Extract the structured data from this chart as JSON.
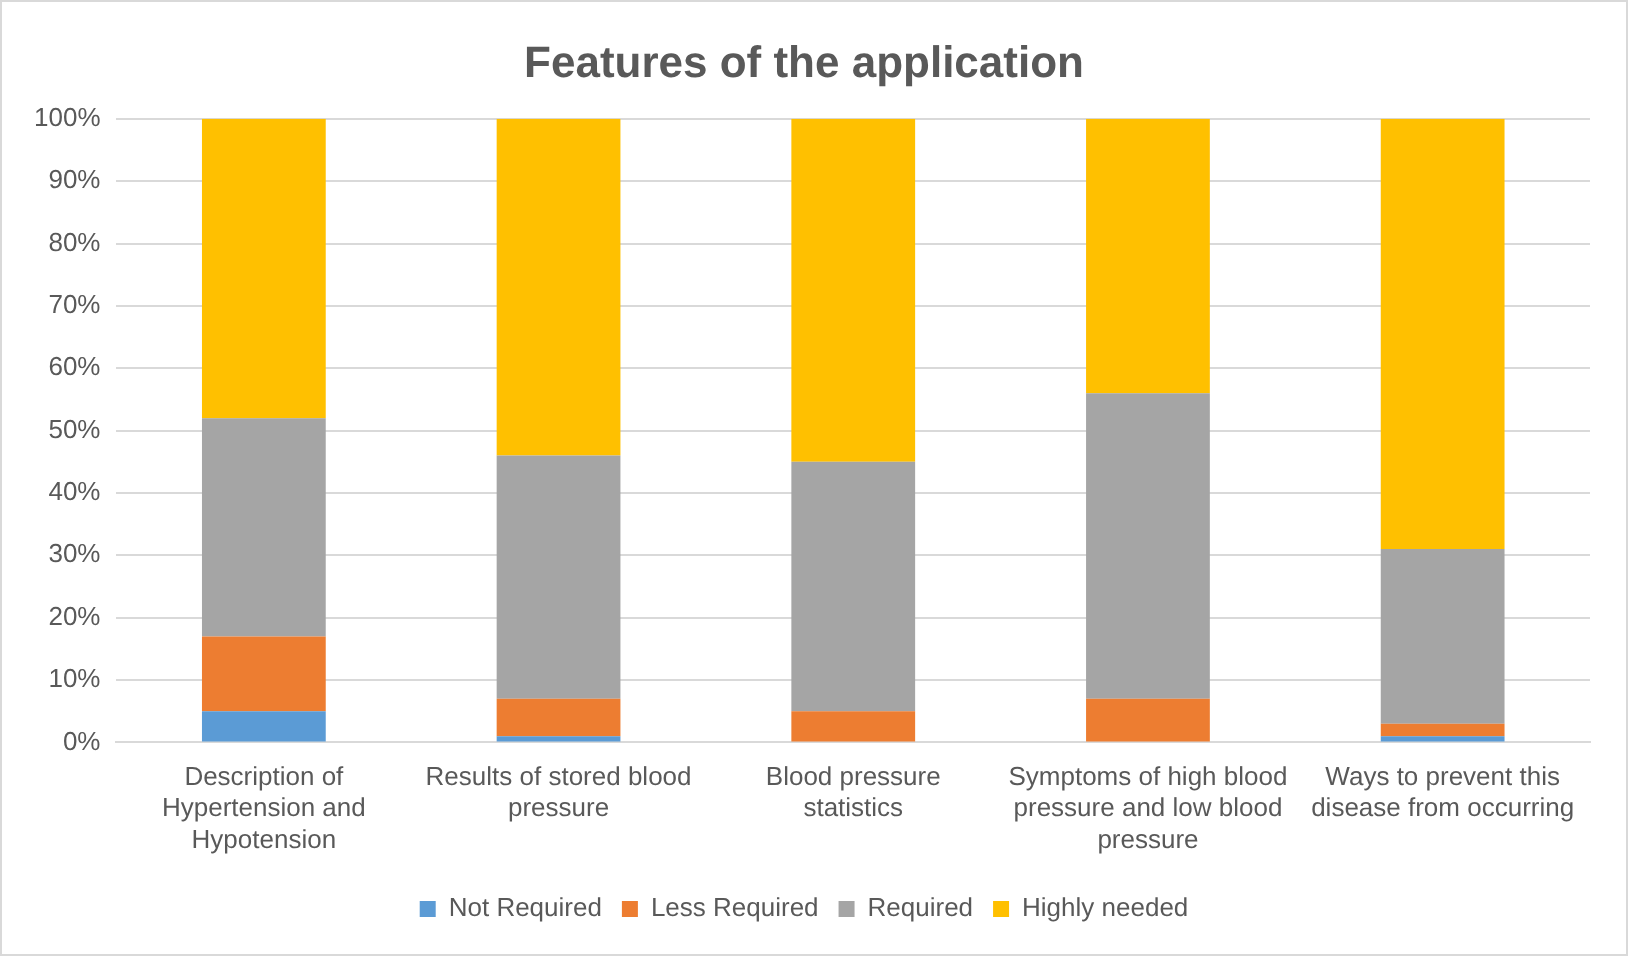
{
  "chart_data": {
    "type": "bar",
    "stacked": true,
    "title": "Features of the application",
    "categories": [
      "Description of Hypertension and Hypotension",
      "Results of stored blood pressure",
      "Blood pressure statistics",
      "Symptoms of high blood pressure and low blood pressure",
      "Ways to prevent this disease from occurring"
    ],
    "series": [
      {
        "name": "Not Required",
        "color": "#5b9bd5",
        "values": [
          5,
          1,
          0,
          0,
          1
        ]
      },
      {
        "name": "Less Required",
        "color": "#ed7d31",
        "values": [
          12,
          6,
          5,
          7,
          2
        ]
      },
      {
        "name": "Required",
        "color": "#a5a5a5",
        "values": [
          35,
          39,
          40,
          49,
          28
        ]
      },
      {
        "name": "Highly needed",
        "color": "#ffc000",
        "values": [
          48,
          54,
          55,
          44,
          69
        ]
      }
    ],
    "ylim": [
      0,
      100
    ],
    "yticks": [
      {
        "value": 0,
        "label": "0%"
      },
      {
        "value": 10,
        "label": "10%"
      },
      {
        "value": 20,
        "label": "20%"
      },
      {
        "value": 30,
        "label": "30%"
      },
      {
        "value": 40,
        "label": "40%"
      },
      {
        "value": 50,
        "label": "50%"
      },
      {
        "value": 60,
        "label": "60%"
      },
      {
        "value": 70,
        "label": "70%"
      },
      {
        "value": 80,
        "label": "80%"
      },
      {
        "value": 90,
        "label": "90%"
      },
      {
        "value": 100,
        "label": "100%"
      }
    ],
    "grid": "y",
    "legend": "bottom"
  }
}
